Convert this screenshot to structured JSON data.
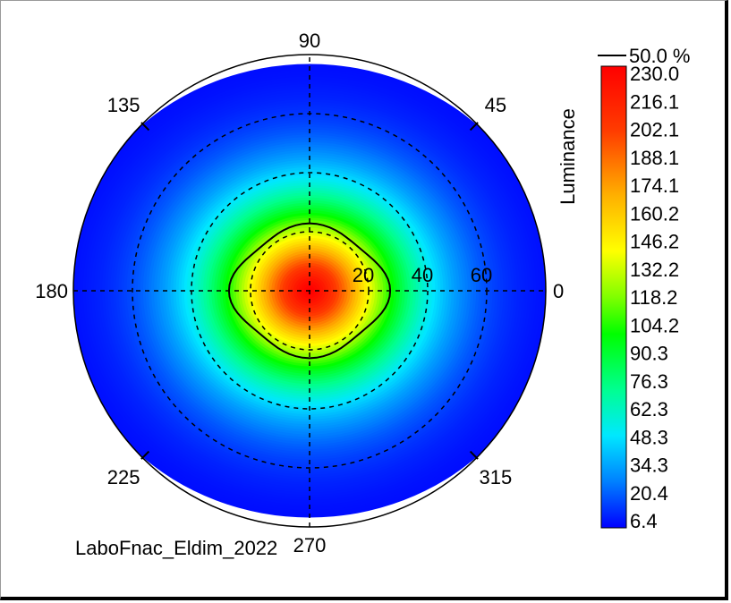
{
  "chart_data": {
    "type": "heatmap",
    "subtype": "polar-conoscope",
    "quantity_label": "Luminance",
    "angle_labels": [
      "0",
      "45",
      "90",
      "135",
      "180",
      "225",
      "270",
      "315"
    ],
    "angle_values": [
      0,
      45,
      90,
      135,
      180,
      225,
      270,
      315
    ],
    "radial_labels": [
      "20",
      "40",
      "60"
    ],
    "radial_values": [
      20,
      40,
      60
    ],
    "radial_max": 80,
    "contour_label": "50.0 %",
    "contour_fraction": 0.5,
    "colorbar_ticks": [
      "230.0",
      "216.1",
      "202.1",
      "188.1",
      "174.1",
      "160.2",
      "146.2",
      "132.2",
      "118.2",
      "104.2",
      "90.3",
      "76.3",
      "62.3",
      "48.3",
      "34.3",
      "20.4",
      "6.4"
    ],
    "value_max": 230.0,
    "value_min": 6.4,
    "peak_at_center": true,
    "colormap": [
      "#0000ff",
      "#0080ff",
      "#00e0ff",
      "#00ff80",
      "#00ff00",
      "#ffff00",
      "#ff8000",
      "#ff0000"
    ],
    "footer_text": "LaboFnac_Eldim_2022"
  }
}
